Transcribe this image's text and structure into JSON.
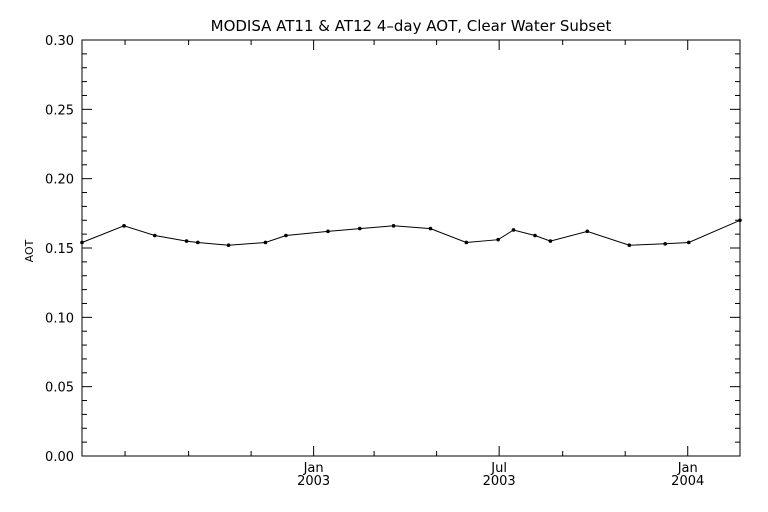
{
  "chart_data": {
    "type": "line",
    "title": "MODISA AT11 & AT12 4–day AOT, Clear Water Subset",
    "xlabel": "",
    "ylabel": "AOT",
    "xlim": [
      "2002-05-20",
      "2004-02-21"
    ],
    "ylim": [
      0.0,
      0.3
    ],
    "yticks": [
      0.0,
      0.05,
      0.1,
      0.15,
      0.2,
      0.25,
      0.3
    ],
    "ytick_labels": [
      "0.00",
      "0.05",
      "0.10",
      "0.15",
      "0.20",
      "0.25",
      "0.30"
    ],
    "xticks": [
      {
        "date": "2003-01-01",
        "label": "Jan",
        "year": "2003"
      },
      {
        "date": "2003-07-01",
        "label": "Jul",
        "year": "2003"
      },
      {
        "date": "2004-01-01",
        "label": "Jan",
        "year": "2004"
      }
    ],
    "x_minor_ticks": [
      "2002-07-01",
      "2002-09-01",
      "2002-11-01",
      "2003-03-01",
      "2003-05-01",
      "2003-09-01",
      "2003-11-01"
    ],
    "grid": false,
    "series": [
      {
        "color": "#000000",
        "points": [
          {
            "x": "2002-05-20",
            "y": 0.154
          },
          {
            "x": "2002-06-30",
            "y": 0.166
          },
          {
            "x": "2002-07-30",
            "y": 0.159
          },
          {
            "x": "2002-08-30",
            "y": 0.155
          },
          {
            "x": "2002-09-10",
            "y": 0.154
          },
          {
            "x": "2002-10-10",
            "y": 0.152
          },
          {
            "x": "2002-11-15",
            "y": 0.154
          },
          {
            "x": "2002-12-05",
            "y": 0.159
          },
          {
            "x": "2003-01-15",
            "y": 0.162
          },
          {
            "x": "2003-02-15",
            "y": 0.164
          },
          {
            "x": "2003-03-20",
            "y": 0.166
          },
          {
            "x": "2003-04-25",
            "y": 0.164
          },
          {
            "x": "2003-05-30",
            "y": 0.154
          },
          {
            "x": "2003-06-30",
            "y": 0.156
          },
          {
            "x": "2003-07-15",
            "y": 0.163
          },
          {
            "x": "2003-08-05",
            "y": 0.159
          },
          {
            "x": "2003-08-20",
            "y": 0.155
          },
          {
            "x": "2003-09-25",
            "y": 0.162
          },
          {
            "x": "2003-11-05",
            "y": 0.152
          },
          {
            "x": "2003-12-10",
            "y": 0.153
          },
          {
            "x": "2004-01-02",
            "y": 0.154
          },
          {
            "x": "2004-02-21",
            "y": 0.17
          }
        ]
      }
    ]
  }
}
